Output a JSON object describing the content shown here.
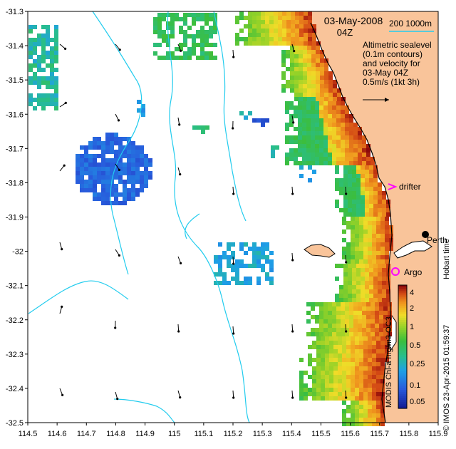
{
  "map": {
    "date_title": "03-May-2008",
    "time_title": "04Z",
    "scale_bar_label": "200  1000m",
    "legend_lines": [
      "Altimetric sealevel",
      "(0.1m contours)",
      "and velocity for",
      "03-May 04Z",
      "0.5m/s (1kt 3h)"
    ],
    "drifter_label": "drifter",
    "argo_label": "Argo",
    "city_label": "Perth",
    "hobart_credit": "Hobart time",
    "imos_credit": "© IMOS 23-Apr-2015 01:59:37",
    "colorbar_label": "MODIS Chl-a mg/m3 OC3",
    "colorbar_ticks": [
      "4",
      "2",
      "1",
      "0.5",
      "0.25",
      "0.1",
      "0.05"
    ],
    "x_ticks": [
      "114.5",
      "114.6",
      "114.7",
      "114.8",
      "114.9",
      "115",
      "115.1",
      "115.2",
      "115.3",
      "115.4",
      "115.5",
      "115.6",
      "115.7",
      "115.8",
      "115.9"
    ],
    "y_ticks": [
      "-31.3",
      "-31.4",
      "-31.5",
      "-31.6",
      "-31.7",
      "-31.8",
      "-31.9",
      "-32",
      "-32.1",
      "-32.2",
      "-32.3",
      "-32.4",
      "-32.5"
    ],
    "colors": {
      "land": "#f9c49a",
      "contour": "#22ccee",
      "drifter_marker": "#ff00ff",
      "argo_marker": "#ff00ff",
      "scale_bar": "#22ccee",
      "chl_low": "#2244cc",
      "chl_mid": "#33bb33",
      "chl_high": "#aa1111"
    }
  }
}
